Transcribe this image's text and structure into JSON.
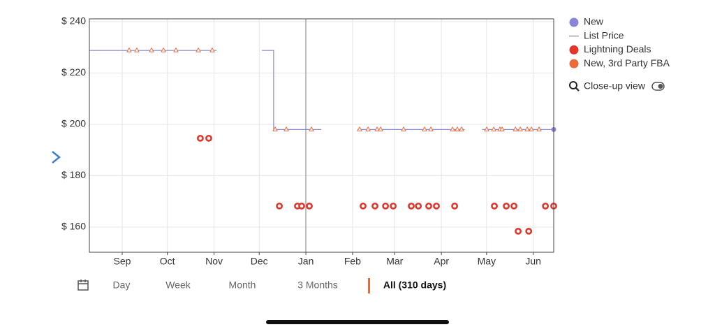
{
  "chart_data": {
    "type": "line",
    "xlim": [
      -21.8,
      286.6
    ],
    "xticks": [
      {
        "value": 0,
        "label": "Sep"
      },
      {
        "value": 30,
        "label": "Oct"
      },
      {
        "value": 61,
        "label": "Nov"
      },
      {
        "value": 91,
        "label": "Dec"
      },
      {
        "value": 122,
        "label": "Jan"
      },
      {
        "value": 153,
        "label": "Feb"
      },
      {
        "value": 181,
        "label": "Mar"
      },
      {
        "value": 212,
        "label": "Apr"
      },
      {
        "value": 242,
        "label": "May"
      },
      {
        "value": 273,
        "label": "Jun"
      }
    ],
    "ylim": [
      150.2,
      241.1
    ],
    "yticks": [
      {
        "value": 160,
        "label": "$ 160"
      },
      {
        "value": 180,
        "label": "$ 180"
      },
      {
        "value": 200,
        "label": "$ 200"
      },
      {
        "value": 220,
        "label": "$ 220"
      },
      {
        "value": 240,
        "label": "$ 240"
      }
    ],
    "grid": true,
    "series": [
      {
        "name": "New",
        "color": "#8a86d8",
        "mark": "line",
        "x": [
          -21.8,
          62.6,
          78,
          92.8,
          100.6,
          100.6,
          132.2,
          145,
          156.3,
          227.3,
          233,
          239,
          286.6
        ],
        "values": [
          228.8,
          228.8,
          null,
          228.8,
          228.8,
          198,
          198,
          null,
          198,
          198,
          null,
          198,
          198
        ]
      },
      {
        "name": "List Price",
        "color": "#bbbbbb",
        "mark": "line",
        "x": [],
        "values": []
      },
      {
        "name": "Lightning Deals",
        "color": "#e0362c",
        "mark": "circle",
        "x": [
          51.9,
          57.5,
          104.4,
          116.4,
          119.2,
          124.3,
          160,
          167.9,
          174.9,
          180,
          192,
          196.7,
          203.6,
          208.7,
          220.8,
          247.2,
          255.1,
          260.2,
          263,
          270,
          281.1,
          286.6
        ],
        "values": [
          194.6,
          194.6,
          168.2,
          168.2,
          168.2,
          168.2,
          168.2,
          168.2,
          168.2,
          168.2,
          168.2,
          168.2,
          168.2,
          168.2,
          168.2,
          168.2,
          168.2,
          168.2,
          158.4,
          158.4,
          168.2,
          168.2
        ]
      },
      {
        "name": "New, 3rd Party FBA",
        "color": "#ef6a3a",
        "mark": "triangle",
        "x": [
          4.6,
          9.7,
          19.5,
          27.4,
          35.7,
          50.6,
          59.8,
          101.6,
          109,
          125.7,
          157.7,
          163.3,
          169.3,
          171.6,
          186.9,
          200.8,
          205,
          219.4,
          222.6,
          225.4,
          242.1,
          246.8,
          250.9,
          252.3,
          261.2,
          264.4,
          269,
          271.8,
          276.9
        ],
        "values": [
          228.8,
          228.8,
          228.8,
          228.8,
          228.8,
          228.8,
          228.8,
          198,
          198,
          198,
          198,
          198,
          198,
          198,
          198,
          198,
          198,
          198,
          198,
          198,
          198,
          198,
          198,
          198,
          198,
          198,
          198,
          198,
          198
        ]
      }
    ]
  },
  "ui": {
    "closeup_label": "Close-up view",
    "range_buttons": [
      "Day",
      "Week",
      "Month",
      "3 Months",
      "All (310 days)"
    ]
  }
}
